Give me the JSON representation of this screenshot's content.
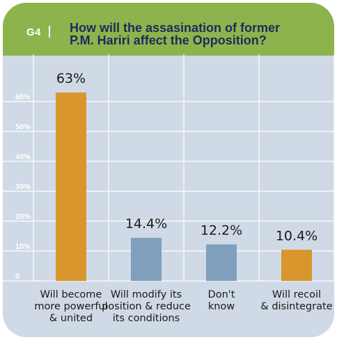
{
  "header": {
    "figure_label": "G4",
    "title_line1": "How will the assasination of former",
    "title_line2": "P.M. Hariri affect the Opposition?"
  },
  "colors": {
    "background": "#cfdae6",
    "header": "#8db44c",
    "title": "#1b2c5b",
    "bar_orange": "#d8962c",
    "bar_blue": "#7f9fbd",
    "tick_label": "#ffffff"
  },
  "chart_data": {
    "type": "bar",
    "title": "How will the assasination of former P.M. Hariri affect the Opposition?",
    "categories": [
      [
        "Will become",
        "more powerful",
        "& united"
      ],
      [
        "Will modify its",
        "position & reduce",
        "its conditions"
      ],
      [
        "Don't",
        "know"
      ],
      [
        "Will recoil",
        "& disintegrate"
      ]
    ],
    "values": [
      63,
      14.4,
      12.2,
      10.4
    ],
    "value_labels": [
      "63%",
      "14.4%",
      "12.2%",
      "10.4%"
    ],
    "bar_colors": [
      "#d8962c",
      "#7f9fbd",
      "#7f9fbd",
      "#d8962c"
    ],
    "yticks": [
      0,
      10,
      20,
      30,
      40,
      50,
      60
    ],
    "ytick_labels": [
      "0",
      "10%",
      "20%",
      "30%",
      "40%",
      "50%",
      "60%"
    ],
    "ylim": [
      0,
      70
    ],
    "grid": true,
    "legend": "none"
  }
}
